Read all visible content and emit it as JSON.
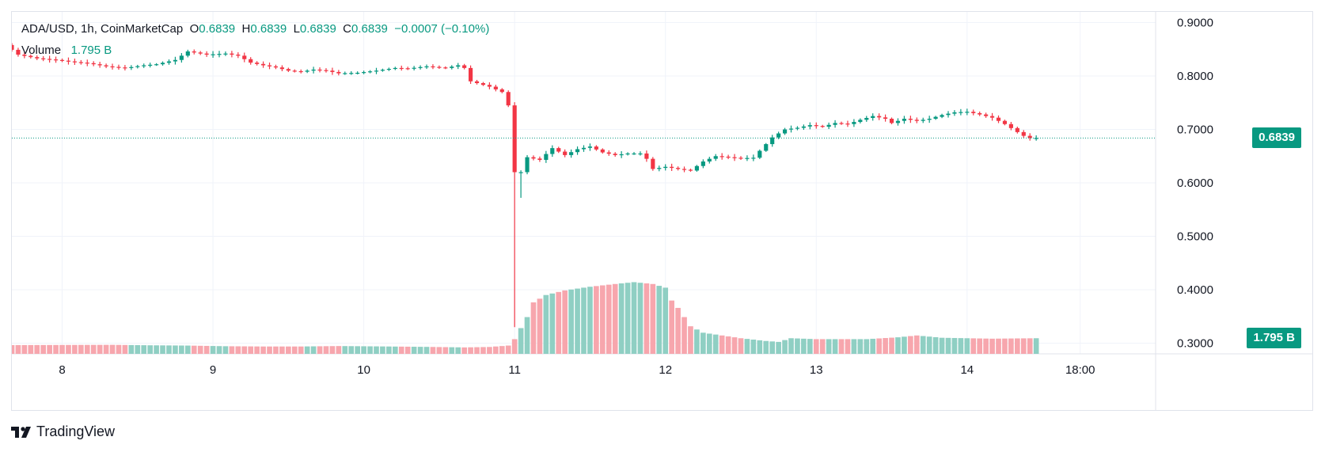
{
  "legend": {
    "symbol": "ADA/USD, 1h, CoinMarketCap",
    "o_label": "O",
    "o_value": "0.6839",
    "h_label": "H",
    "h_value": "0.6839",
    "l_label": "L",
    "l_value": "0.6839",
    "c_label": "C",
    "c_value": "0.6839",
    "change": "−0.0007 (−0.10%)",
    "volume_label": "Volume",
    "volume_value": "1.795 B"
  },
  "price_tag": {
    "value": "0.6839",
    "color": "#089981"
  },
  "volume_tag": {
    "value": "1.795 B",
    "color": "#089981"
  },
  "branding": {
    "text": "TradingView"
  },
  "colors": {
    "up": "#089981",
    "down": "#f23645",
    "vol_up": "#8fcfc3",
    "vol_down": "#f7a6ad",
    "grid": "#f0f3fa",
    "text": "#131722"
  },
  "chart_data": {
    "type": "candlestick",
    "y_ticks": [
      "0.9000",
      "0.8000",
      "0.7000",
      "0.6000",
      "0.5000",
      "0.4000",
      "0.3000"
    ],
    "y_tick_values": [
      0.9,
      0.8,
      0.7,
      0.6,
      0.5,
      0.4,
      0.3
    ],
    "ylim": [
      0.28,
      0.92
    ],
    "x_ticks": [
      {
        "label": "8",
        "t": 12
      },
      {
        "label": "9",
        "t": 36
      },
      {
        "label": "10",
        "t": 60
      },
      {
        "label": "11",
        "t": 84
      },
      {
        "label": "12",
        "t": 108
      },
      {
        "label": "13",
        "t": 132
      },
      {
        "label": "14",
        "t": 156
      },
      {
        "label": "18:00",
        "t": 174
      }
    ],
    "xlim": [
      4,
      186
    ],
    "last_price": 0.6839,
    "keypoints": [
      [
        4,
        0.858
      ],
      [
        6,
        0.84
      ],
      [
        9,
        0.833
      ],
      [
        12,
        0.83
      ],
      [
        15,
        0.826
      ],
      [
        17,
        0.824
      ],
      [
        20,
        0.818
      ],
      [
        23,
        0.815
      ],
      [
        26,
        0.82
      ],
      [
        28,
        0.822
      ],
      [
        31,
        0.83
      ],
      [
        33,
        0.846
      ],
      [
        36,
        0.84
      ],
      [
        39,
        0.842
      ],
      [
        41,
        0.838
      ],
      [
        43,
        0.825
      ],
      [
        45,
        0.82
      ],
      [
        47,
        0.816
      ],
      [
        49,
        0.81
      ],
      [
        51,
        0.808
      ],
      [
        53,
        0.812
      ],
      [
        55,
        0.81
      ],
      [
        57,
        0.805
      ],
      [
        60,
        0.806
      ],
      [
        63,
        0.81
      ],
      [
        66,
        0.815
      ],
      [
        68,
        0.814
      ],
      [
        71,
        0.818
      ],
      [
        74,
        0.815
      ],
      [
        76,
        0.82
      ],
      [
        77,
        0.815
      ],
      [
        78,
        0.79
      ],
      [
        81,
        0.78
      ],
      [
        83,
        0.77
      ],
      [
        84,
        0.745
      ],
      [
        85,
        0.62
      ],
      [
        86,
        0.62
      ],
      [
        87,
        0.648
      ],
      [
        89,
        0.643
      ],
      [
        91,
        0.665
      ],
      [
        93,
        0.652
      ],
      [
        95,
        0.663
      ],
      [
        97,
        0.668
      ],
      [
        99,
        0.657
      ],
      [
        101,
        0.652
      ],
      [
        103,
        0.655
      ],
      [
        105,
        0.655
      ],
      [
        106,
        0.645
      ],
      [
        107,
        0.626
      ],
      [
        109,
        0.63
      ],
      [
        111,
        0.626
      ],
      [
        113,
        0.623
      ],
      [
        115,
        0.64
      ],
      [
        117,
        0.65
      ],
      [
        119,
        0.648
      ],
      [
        121,
        0.646
      ],
      [
        123,
        0.647
      ],
      [
        124,
        0.66
      ],
      [
        126,
        0.685
      ],
      [
        128,
        0.7
      ],
      [
        130,
        0.703
      ],
      [
        132,
        0.708
      ],
      [
        134,
        0.705
      ],
      [
        136,
        0.712
      ],
      [
        138,
        0.71
      ],
      [
        140,
        0.718
      ],
      [
        142,
        0.725
      ],
      [
        144,
        0.72
      ],
      [
        145,
        0.712
      ],
      [
        147,
        0.72
      ],
      [
        149,
        0.716
      ],
      [
        151,
        0.72
      ],
      [
        153,
        0.727
      ],
      [
        155,
        0.732
      ],
      [
        157,
        0.733
      ],
      [
        159,
        0.728
      ],
      [
        161,
        0.722
      ],
      [
        163,
        0.71
      ],
      [
        165,
        0.695
      ],
      [
        166,
        0.688
      ],
      [
        167,
        0.6839
      ]
    ],
    "volume_keypoints": [
      [
        4,
        0.095
      ],
      [
        14,
        0.097
      ],
      [
        20,
        0.098
      ],
      [
        26,
        0.093
      ],
      [
        32,
        0.09
      ],
      [
        38,
        0.083
      ],
      [
        44,
        0.08
      ],
      [
        50,
        0.08
      ],
      [
        56,
        0.085
      ],
      [
        64,
        0.08
      ],
      [
        70,
        0.076
      ],
      [
        76,
        0.07
      ],
      [
        80,
        0.075
      ],
      [
        83,
        0.09
      ],
      [
        84,
        0.16
      ],
      [
        85,
        0.28
      ],
      [
        86,
        0.4
      ],
      [
        87,
        0.56
      ],
      [
        89,
        0.64
      ],
      [
        92,
        0.69
      ],
      [
        96,
        0.73
      ],
      [
        100,
        0.76
      ],
      [
        103,
        0.78
      ],
      [
        106,
        0.76
      ],
      [
        108,
        0.72
      ],
      [
        109,
        0.58
      ],
      [
        110,
        0.5
      ],
      [
        112,
        0.3
      ],
      [
        114,
        0.23
      ],
      [
        117,
        0.2
      ],
      [
        120,
        0.17
      ],
      [
        124,
        0.14
      ],
      [
        126,
        0.13
      ],
      [
        128,
        0.17
      ],
      [
        132,
        0.16
      ],
      [
        140,
        0.16
      ],
      [
        145,
        0.18
      ],
      [
        148,
        0.2
      ],
      [
        152,
        0.175
      ],
      [
        160,
        0.165
      ],
      [
        167,
        0.17
      ]
    ]
  }
}
